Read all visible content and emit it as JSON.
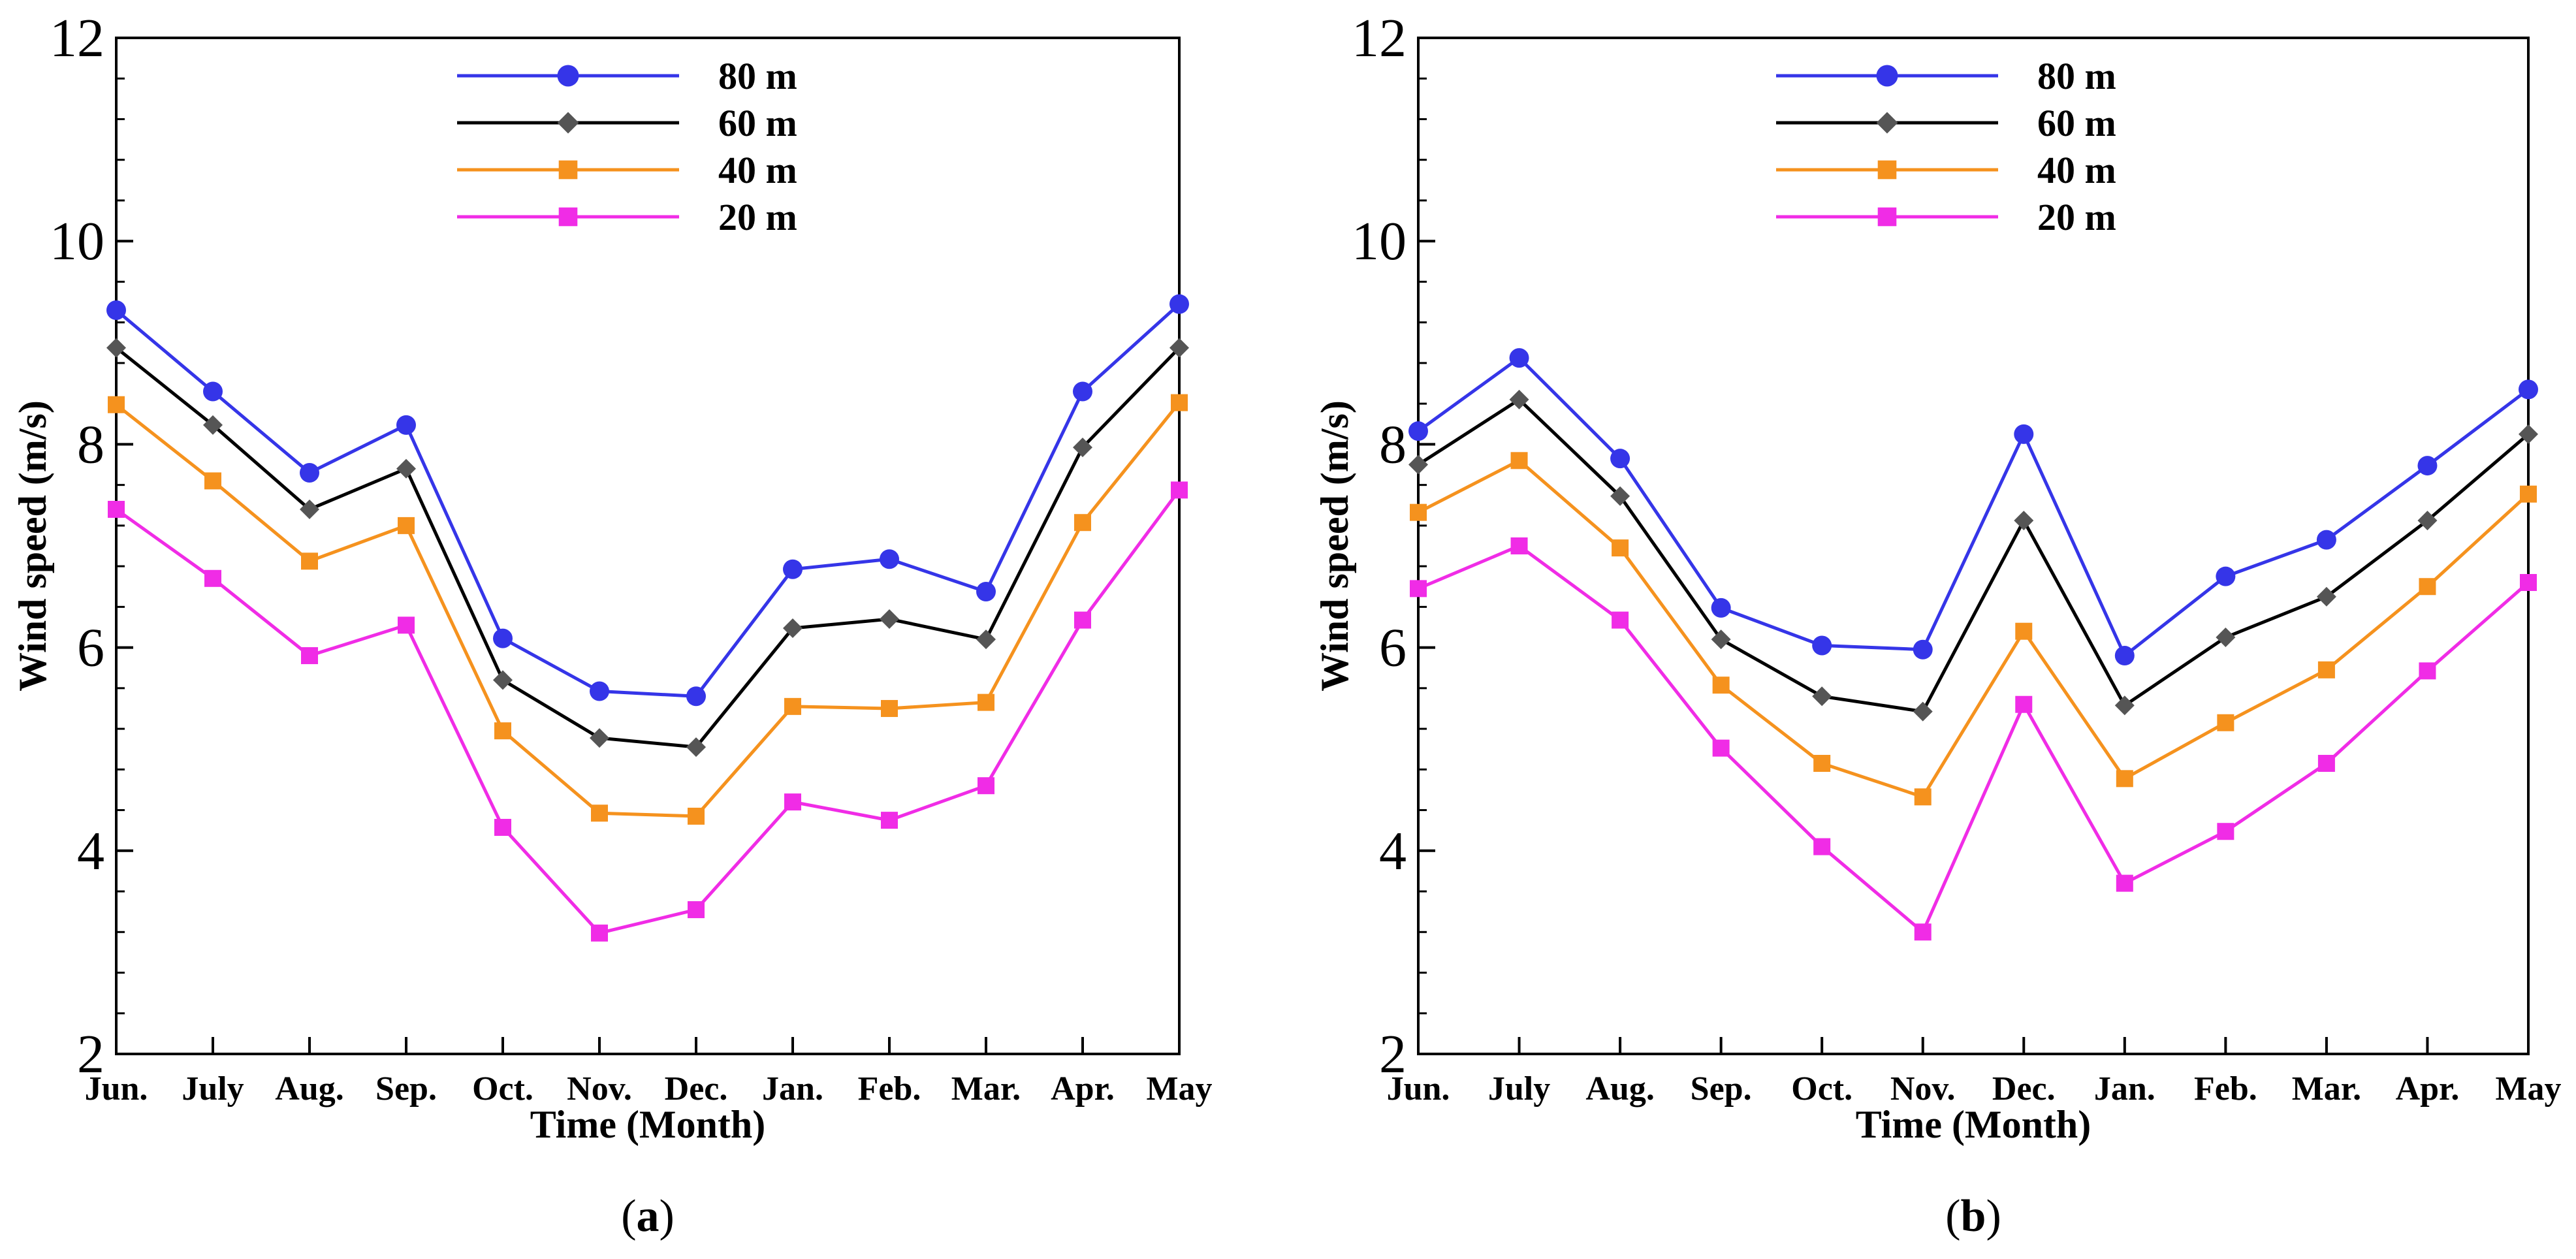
{
  "figure": {
    "panels": [
      {
        "label_open": "(",
        "label_letter": "a",
        "label_close": ")"
      },
      {
        "label_open": "(",
        "label_letter": "b",
        "label_close": ")"
      }
    ]
  },
  "chart_data": [
    {
      "type": "line",
      "panel": "a",
      "title": "",
      "xlabel": "Time (Month)",
      "ylabel": "Wind speed (m/s)",
      "ylim": [
        2,
        12
      ],
      "yticks": [
        2,
        4,
        6,
        8,
        10,
        12
      ],
      "grid": false,
      "legend_position": "top-center",
      "categories": [
        "Jun.",
        "July",
        "Aug.",
        "Sep.",
        "Oct.",
        "Nov.",
        "Dec.",
        "Jan.",
        "Feb.",
        "Mar.",
        "Apr.",
        "May"
      ],
      "series": [
        {
          "name": "80 m",
          "color": "#3535e8",
          "marker": "circle",
          "values": [
            9.32,
            8.52,
            7.72,
            8.19,
            6.09,
            5.57,
            5.52,
            6.77,
            6.87,
            6.55,
            8.52,
            9.38
          ]
        },
        {
          "name": "60 m",
          "color": "#555555",
          "line_color": "#000000",
          "marker": "diamond",
          "values": [
            8.95,
            8.19,
            7.36,
            7.76,
            5.68,
            5.11,
            5.02,
            6.19,
            6.28,
            6.08,
            7.97,
            8.95
          ]
        },
        {
          "name": "40 m",
          "color": "#f5921e",
          "marker": "square",
          "values": [
            8.39,
            7.64,
            6.85,
            7.2,
            5.18,
            4.37,
            4.34,
            5.42,
            5.4,
            5.46,
            7.23,
            8.41
          ]
        },
        {
          "name": "20 m",
          "color": "#f02ce6",
          "marker": "square",
          "values": [
            7.36,
            6.68,
            5.92,
            6.22,
            4.23,
            3.19,
            3.42,
            4.48,
            4.3,
            4.64,
            6.27,
            7.55
          ]
        }
      ]
    },
    {
      "type": "line",
      "panel": "b",
      "title": "",
      "xlabel": "Time (Month)",
      "ylabel": "Wind speed (m/s)",
      "ylim": [
        2,
        12
      ],
      "yticks": [
        2,
        4,
        6,
        8,
        10,
        12
      ],
      "grid": false,
      "legend_position": "top-center",
      "categories": [
        "Jun.",
        "July",
        "Aug.",
        "Sep.",
        "Oct.",
        "Nov.",
        "Dec.",
        "Jan.",
        "Feb.",
        "Mar.",
        "Apr.",
        "May"
      ],
      "series": [
        {
          "name": "80 m",
          "color": "#3535e8",
          "marker": "circle",
          "values": [
            8.13,
            8.85,
            7.86,
            6.39,
            6.02,
            5.98,
            8.1,
            5.92,
            6.7,
            7.06,
            7.79,
            8.54
          ]
        },
        {
          "name": "60 m",
          "color": "#555555",
          "line_color": "#000000",
          "marker": "diamond",
          "values": [
            7.8,
            8.44,
            7.49,
            6.08,
            5.52,
            5.37,
            7.25,
            5.43,
            6.1,
            6.5,
            7.25,
            8.1
          ]
        },
        {
          "name": "40 m",
          "color": "#f5921e",
          "marker": "square",
          "values": [
            7.33,
            7.84,
            6.98,
            5.63,
            4.86,
            4.53,
            6.16,
            4.71,
            5.26,
            5.78,
            6.6,
            7.51
          ]
        },
        {
          "name": "20 m",
          "color": "#f02ce6",
          "marker": "square",
          "values": [
            6.58,
            7.0,
            6.27,
            5.01,
            4.04,
            3.2,
            5.44,
            3.68,
            4.19,
            4.86,
            5.77,
            6.64
          ]
        }
      ]
    }
  ]
}
